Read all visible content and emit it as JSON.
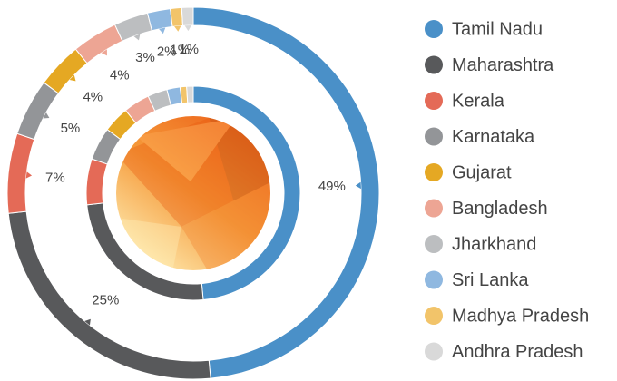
{
  "chart_data": {
    "type": "donut",
    "categories": [
      "Tamil Nadu",
      "Maharashtra",
      "Kerala",
      "Karnataka",
      "Gujarat",
      "Bangladesh",
      "Jharkhand",
      "Sri Lanka",
      "Madhya Pradesh",
      "Andhra Pradesh"
    ],
    "values": [
      49,
      25,
      7,
      5,
      4,
      4,
      3,
      2,
      1,
      1
    ],
    "value_labels": [
      "49%",
      "25%",
      "7%",
      "5%",
      "4%",
      "4%",
      "3%",
      "2%",
      "1%",
      "1%"
    ],
    "colors": [
      "#4a90c8",
      "#58595b",
      "#e46a57",
      "#939598",
      "#e5a823",
      "#eda594",
      "#bcbec0",
      "#8fb8e0",
      "#f2c46a",
      "#d9d9d9"
    ],
    "legend": "right"
  }
}
